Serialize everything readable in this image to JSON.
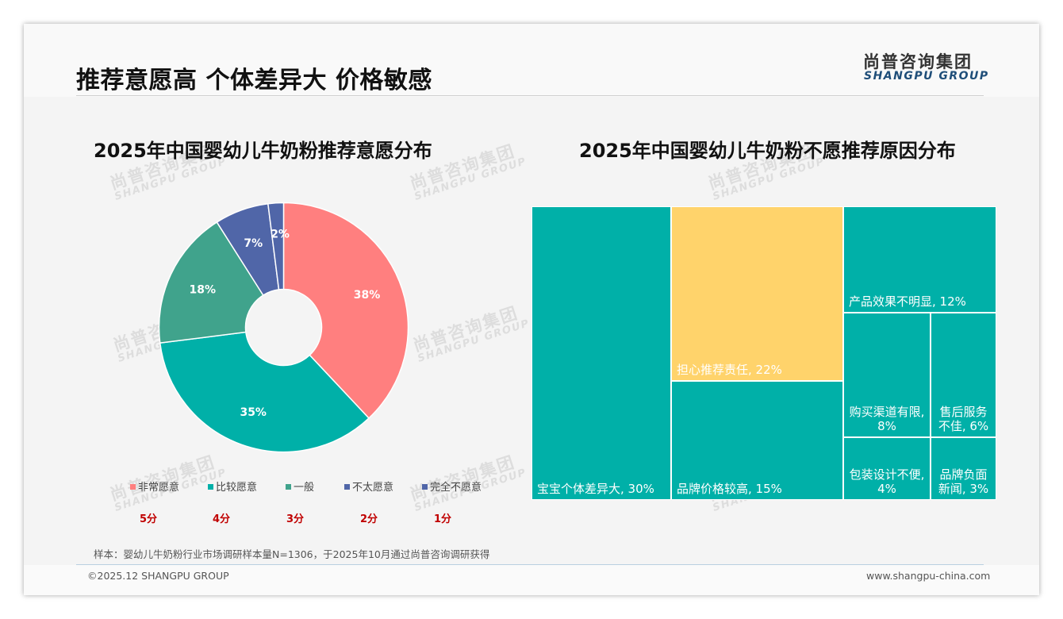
{
  "header": {
    "title": "推荐意愿高 个体差异大 价格敏感",
    "logo_cn": "尚普咨询集团",
    "logo_en": "SHANGPU GROUP"
  },
  "watermark": {
    "cn": "尚普咨询集团",
    "en": "SHANGPU GROUP"
  },
  "colors": {
    "pink": "#ff7f7f",
    "teal": "#00b0a8",
    "green": "#40a38c",
    "blue": "#5066a8",
    "yellow": "#ffd36b",
    "score_red": "#c00000"
  },
  "chart_data": [
    {
      "type": "pie",
      "variant": "donut",
      "title": "2025年中国婴幼儿牛奶粉推荐意愿分布",
      "categories": [
        "非常愿意",
        "比较愿意",
        "一般",
        "不太愿意",
        "完全不愿意"
      ],
      "scores": [
        "5分",
        "4分",
        "3分",
        "2分",
        "1分"
      ],
      "values": [
        38,
        35,
        18,
        7,
        2
      ],
      "labels": [
        "38%",
        "35%",
        "18%",
        "7%",
        "2%"
      ],
      "colors": [
        "#ff7f7f",
        "#00b0a8",
        "#40a38c",
        "#5066a8",
        "#5066a8"
      ],
      "legend": "bottom"
    },
    {
      "type": "treemap",
      "title": "2025年中国婴幼儿牛奶粉不愿推荐原因分布",
      "items": [
        {
          "name": "宝宝个体差异大",
          "value": 30,
          "label": "宝宝个体差异大, 30%",
          "color": "#00b0a8"
        },
        {
          "name": "担心推荐责任",
          "value": 22,
          "label": "担心推荐责任, 22%",
          "color": "#ffd36b"
        },
        {
          "name": "品牌价格较高",
          "value": 15,
          "label": "品牌价格较高, 15%",
          "color": "#00b0a8"
        },
        {
          "name": "产品效果不明显",
          "value": 12,
          "label": "产品效果不明显, 12%",
          "color": "#00b0a8"
        },
        {
          "name": "购买渠道有限",
          "value": 8,
          "label": "购买渠道有限,",
          "label2": "8%",
          "color": "#00b0a8"
        },
        {
          "name": "售后服务不佳",
          "value": 6,
          "label": "售后服务",
          "label2": "不佳, 6%",
          "color": "#00b0a8"
        },
        {
          "name": "包装设计不便",
          "value": 4,
          "label": "包装设计不便,",
          "label2": "4%",
          "color": "#00b0a8"
        },
        {
          "name": "品牌负面新闻",
          "value": 3,
          "label": "品牌负面",
          "label2": "新闻, 3%",
          "color": "#00b0a8"
        }
      ]
    }
  ],
  "footer": {
    "note": "样本：婴幼儿牛奶粉行业市场调研样本量N=1306，于2025年10月通过尚普咨询调研获得",
    "copyright": "©2025.12 SHANGPU GROUP",
    "website": "www.shangpu-china.com"
  }
}
